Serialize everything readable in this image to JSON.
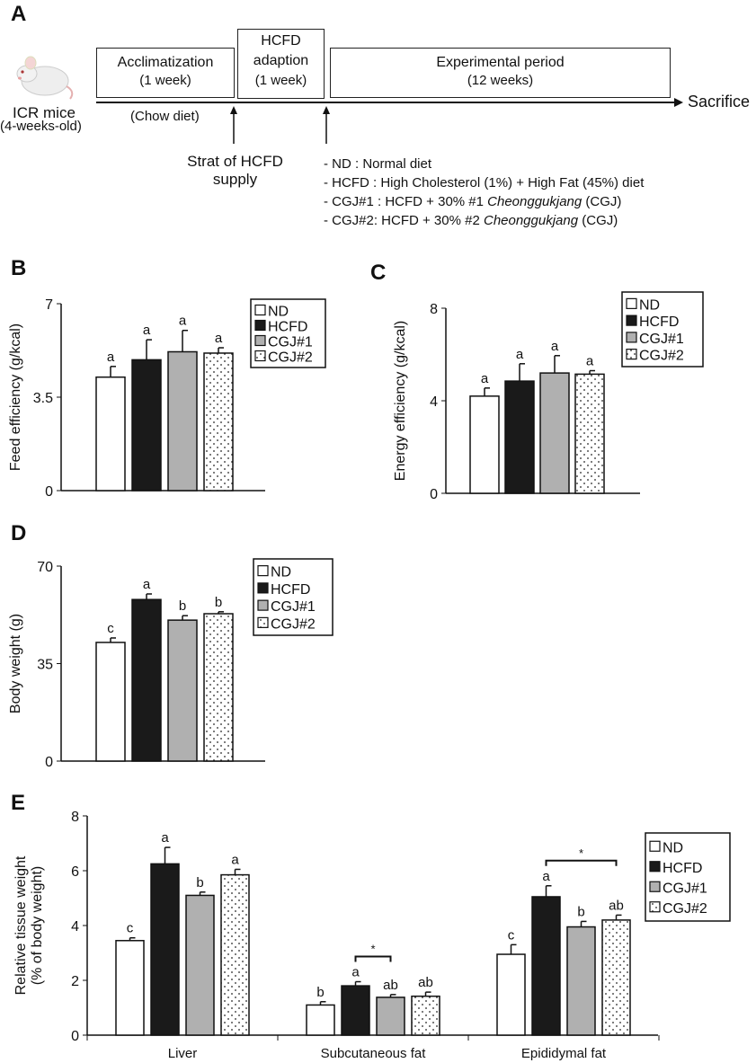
{
  "panel_a": {
    "label": "A",
    "subject": "ICR mice",
    "subject_age": "(4-weeks-old)",
    "boxes": [
      {
        "title": "Acclimatization",
        "duration": "(1 week)"
      },
      {
        "title": "HCFD adaption",
        "duration": "(1 week)"
      },
      {
        "title": "Experimental period",
        "duration": "(12 weeks)"
      }
    ],
    "chow": "(Chow diet)",
    "end": "Sacrifice",
    "start_note_1": "Strat of HCFD",
    "start_note_2": "supply",
    "legend": [
      {
        "text": "- ND : Normal diet"
      },
      {
        "text": "- HCFD : High Cholesterol (1%) + High Fat (45%) diet"
      },
      {
        "pre": "- CGJ#1 : HCFD + 30% #1 ",
        "ital": "Cheonggukjang",
        "post": " (CGJ)"
      },
      {
        "pre": "- CGJ#2: HCFD + 30% #2 ",
        "ital": "Cheonggukjang",
        "post": " (CGJ)"
      }
    ]
  },
  "legend": [
    "ND",
    "HCFD",
    "CGJ#1",
    "CGJ#2"
  ],
  "colors": {
    "ND": "#ffffff",
    "HCFD": "#1a1a1a",
    "CGJ#1": "#b0b0b0",
    "CGJ#2": "dotted-white"
  },
  "chart_data": [
    {
      "panel": "B",
      "type": "bar",
      "ylabel": "Feed efficiency (g/kcal)",
      "ylim": [
        0,
        7
      ],
      "yticks": [
        "0",
        "3.5",
        "7"
      ],
      "series": [
        {
          "name": "ND",
          "values": [
            4.25
          ],
          "err": [
            0.4
          ],
          "sig": [
            "a"
          ]
        },
        {
          "name": "HCFD",
          "values": [
            4.9
          ],
          "err": [
            0.75
          ],
          "sig": [
            "a"
          ]
        },
        {
          "name": "CGJ#1",
          "values": [
            5.2
          ],
          "err": [
            0.8
          ],
          "sig": [
            "a"
          ]
        },
        {
          "name": "CGJ#2",
          "values": [
            5.15
          ],
          "err": [
            0.2
          ],
          "sig": [
            "a"
          ]
        }
      ]
    },
    {
      "panel": "C",
      "type": "bar",
      "ylabel": "Energy efficiency (g/kcal)",
      "ylim": [
        0,
        8
      ],
      "yticks": [
        "0",
        "4",
        "8"
      ],
      "series": [
        {
          "name": "ND",
          "values": [
            4.2
          ],
          "err": [
            0.35
          ],
          "sig": [
            "a"
          ]
        },
        {
          "name": "HCFD",
          "values": [
            4.85
          ],
          "err": [
            0.75
          ],
          "sig": [
            "a"
          ]
        },
        {
          "name": "CGJ#1",
          "values": [
            5.2
          ],
          "err": [
            0.75
          ],
          "sig": [
            "a"
          ]
        },
        {
          "name": "CGJ#2",
          "values": [
            5.15
          ],
          "err": [
            0.15
          ],
          "sig": [
            "a"
          ]
        }
      ]
    },
    {
      "panel": "D",
      "type": "bar",
      "ylabel": "Body weight (g)",
      "ylim": [
        0,
        70
      ],
      "yticks": [
        "0",
        "35",
        "70"
      ],
      "series": [
        {
          "name": "ND",
          "values": [
            42.6
          ],
          "err": [
            1.6
          ],
          "sig": [
            "c"
          ]
        },
        {
          "name": "HCFD",
          "values": [
            58
          ],
          "err": [
            2
          ],
          "sig": [
            "a"
          ]
        },
        {
          "name": "CGJ#1",
          "values": [
            50.6
          ],
          "err": [
            1.6
          ],
          "sig": [
            "b"
          ]
        },
        {
          "name": "CGJ#2",
          "values": [
            52.9
          ],
          "err": [
            0.7
          ],
          "sig": [
            "b"
          ]
        }
      ]
    },
    {
      "panel": "E",
      "type": "bar",
      "ylabel": "Relative tissue weight",
      "ylabel2": "(% of body weight)",
      "ylim": [
        0,
        8
      ],
      "yticks": [
        "0",
        "2",
        "4",
        "6",
        "8"
      ],
      "categories": [
        "Liver",
        "Subcutaneous fat",
        "Epididymal fat"
      ],
      "series": [
        {
          "name": "ND",
          "values": [
            3.45,
            1.1,
            2.95
          ],
          "err": [
            0.1,
            0.12,
            0.35
          ],
          "sig": [
            "c",
            "b",
            "c"
          ]
        },
        {
          "name": "HCFD",
          "values": [
            6.25,
            1.8,
            5.05
          ],
          "err": [
            0.6,
            0.15,
            0.4
          ],
          "sig": [
            "a",
            "a",
            "a"
          ]
        },
        {
          "name": "CGJ#1",
          "values": [
            5.1,
            1.38,
            3.95
          ],
          "err": [
            0.12,
            0.1,
            0.2
          ],
          "sig": [
            "b",
            "ab",
            "b"
          ]
        },
        {
          "name": "CGJ#2",
          "values": [
            5.85,
            1.42,
            4.2
          ],
          "err": [
            0.2,
            0.15,
            0.18
          ],
          "sig": [
            "a",
            "ab",
            "ab"
          ]
        }
      ],
      "brackets": [
        {
          "category": "Subcutaneous fat",
          "from": "HCFD",
          "to": "CGJ#1",
          "mark": "*"
        },
        {
          "category": "Epididymal fat",
          "from": "HCFD",
          "to": "CGJ#2",
          "mark": "*"
        }
      ]
    }
  ]
}
